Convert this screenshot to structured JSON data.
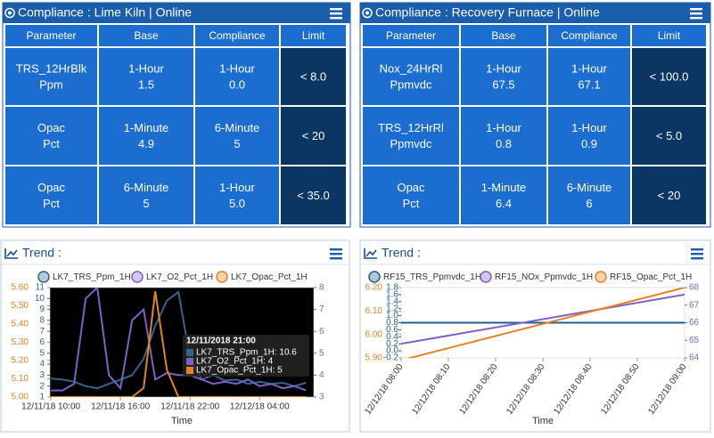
{
  "compliance_panels": [
    {
      "title": "Compliance : Lime Kiln | Online",
      "columns": [
        "Parameter",
        "Base",
        "Compliance",
        "Limit"
      ],
      "rows": [
        [
          [
            "TRS_12HrBlk",
            "Ppm"
          ],
          [
            "1-Hour",
            "1.5"
          ],
          [
            "1-Hour",
            "0.0"
          ],
          [
            "< 8.0"
          ]
        ],
        [
          [
            "Opac",
            "Pct"
          ],
          [
            "1-Minute",
            "4.9"
          ],
          [
            "6-Minute",
            "5"
          ],
          [
            "< 20"
          ]
        ],
        [
          [
            "Opac",
            "Pct"
          ],
          [
            "6-Minute",
            "5"
          ],
          [
            "1-Hour",
            "5.0"
          ],
          [
            "< 35.0"
          ]
        ]
      ]
    },
    {
      "title": "Compliance : Recovery Furnace | Online",
      "columns": [
        "Parameter",
        "Base",
        "Compliance",
        "Limit"
      ],
      "rows": [
        [
          [
            "Nox_24HrRl",
            "Ppmvdc"
          ],
          [
            "1-Hour",
            "67.5"
          ],
          [
            "1-Hour",
            "67.1"
          ],
          [
            "< 100.0"
          ]
        ],
        [
          [
            "TRS_12HrRl",
            "Ppmvdc"
          ],
          [
            "1-Hour",
            "0.8"
          ],
          [
            "1-Hour",
            "0.9"
          ],
          [
            "< 5.0"
          ]
        ],
        [
          [
            "Opac",
            "Pct"
          ],
          [
            "1-Minute",
            "6.4"
          ],
          [
            "6-Minute",
            "6"
          ],
          [
            "< 20"
          ]
        ]
      ]
    }
  ],
  "chart_data": [
    {
      "type": "line",
      "title": "Trend :",
      "x_label": "Time",
      "x": [
        "12/11/18 10:00",
        "12/11/18 11:00",
        "12/11/18 12:00",
        "12/11/18 13:00",
        "12/11/18 14:00",
        "12/11/18 15:00",
        "12/11/18 16:00",
        "12/11/18 17:00",
        "12/11/18 18:00",
        "12/11/18 19:00",
        "12/11/18 20:00",
        "12/11/18 21:00",
        "12/11/18 22:00",
        "12/11/18 23:00",
        "12/12/18 00:00",
        "12/12/18 01:00",
        "12/12/18 02:00",
        "12/12/18 03:00",
        "12/12/18 04:00",
        "12/12/18 05:00",
        "12/12/18 06:00",
        "12/12/18 07:00",
        "12/12/18 08:00"
      ],
      "xlim": [
        "12/11/18 09:55",
        "12/12/18 08:40"
      ],
      "xticks": [
        "12/11/18 10:00",
        "12/11/18 16:00",
        "12/11/18 22:00",
        "12/12/18 04:00"
      ],
      "ylim": [
        1,
        11
      ],
      "yticks": [
        1,
        2,
        3,
        4,
        5,
        6,
        7,
        8,
        9,
        10,
        11
      ],
      "y2lim": [
        3,
        8
      ],
      "y2ticks": [
        3,
        4,
        5,
        6,
        7,
        8
      ],
      "y3lim": [
        5,
        5.6
      ],
      "y3ticks": [
        {
          "value": 5,
          "label": "5.00"
        },
        {
          "value": 5.1,
          "label": "5.10"
        },
        {
          "value": 5.2,
          "label": "5.20"
        },
        {
          "value": 5.3,
          "label": "5.30"
        },
        {
          "value": 5.4,
          "label": "5.40"
        },
        {
          "value": 5.5,
          "label": "5.50"
        },
        {
          "value": 5.6,
          "label": "5.60"
        }
      ],
      "series": [
        {
          "name": "LK7_TRS_Ppm_1H",
          "color": "#2f6690",
          "values": [
            2.7,
            2.6,
            2.4,
            2.0,
            1.8,
            2.2,
            2.6,
            3.0,
            4.5,
            7.5,
            9.8,
            10.6,
            4.5,
            2.6,
            3.0,
            2.5,
            2.6,
            2.2,
            2.4,
            2.2,
            2.3,
            2.0,
            2.3
          ]
        },
        {
          "name": "LK7_O2_Pct_1H",
          "color": "#7f5fc8",
          "axis": "y2",
          "values": [
            3.3,
            3.3,
            3.6,
            7.5,
            8.0,
            4.0,
            3.4,
            6.5,
            7.0,
            3.8,
            4.1,
            4.0,
            4.0,
            3.8,
            3.6,
            3.7,
            3.6,
            3.8,
            3.5,
            3.6,
            3.4,
            3.5,
            3.3
          ]
        },
        {
          "name": "LK7_Opac_Pct_1H",
          "color": "#e8821e",
          "axis": "y3",
          "values": [
            5,
            5,
            5,
            5,
            5,
            5,
            5,
            5,
            5.05,
            5.58,
            5.15,
            5,
            5,
            5,
            5,
            5,
            5,
            5,
            5,
            5,
            5,
            5,
            5
          ]
        }
      ],
      "tooltip": {
        "title": "12/11/2018 21:00",
        "items": [
          "LK7_TRS_Ppm_1H: 10.6",
          "LK7_O2_Pct_1H: 4",
          "LK7_Opac_Pct_1H: 5"
        ]
      },
      "legend": "top",
      "plot_background": "#000000"
    },
    {
      "type": "line",
      "title": "Trend :",
      "x_label": "Time",
      "x": [
        "12/12/18 08:00",
        "12/12/18 09:00"
      ],
      "xlim": [
        "12/12/18 08:00",
        "12/12/18 09:00"
      ],
      "xticks": [
        "12/12/18 08:00",
        "12/12/18 08:10",
        "12/12/18 08:20",
        "12/12/18 08:30",
        "12/12/18 08:40",
        "12/12/18 08:50",
        "12/12/18 09:00"
      ],
      "ylim": [
        -0.2,
        1.8
      ],
      "yticks": [
        -0.2,
        {
          "value": 0,
          "label": "0.0"
        },
        0.2,
        0.4,
        0.6,
        0.8,
        {
          "value": 1,
          "label": "1.0"
        },
        1.2,
        1.4,
        1.6,
        1.8
      ],
      "y2lim": [
        64,
        68
      ],
      "y2ticks": [
        64,
        65,
        66,
        67,
        68
      ],
      "y3lim": [
        5.9,
        6.2
      ],
      "y3ticks": [
        {
          "value": 5.9,
          "label": "5.90"
        },
        {
          "value": 6,
          "label": "6.00"
        },
        {
          "value": 6.1,
          "label": "6.10"
        },
        {
          "value": 6.2,
          "label": "6.20"
        }
      ],
      "series": [
        {
          "name": "RF15_TRS_Ppmvdc_1H",
          "color": "#1f5f8f",
          "values": [
            0.8,
            0.8
          ]
        },
        {
          "name": "RF15_NOx_Ppmvdc_1H",
          "color": "#7f5fc8",
          "axis": "y2",
          "values": [
            64.8,
            67.6
          ]
        },
        {
          "name": "RF15_Opac_Pct_1H",
          "color": "#e8821e",
          "axis": "y3",
          "values": [
            5.89,
            6.2
          ]
        }
      ],
      "legend": "top",
      "plot_background": "#ffffff"
    }
  ]
}
